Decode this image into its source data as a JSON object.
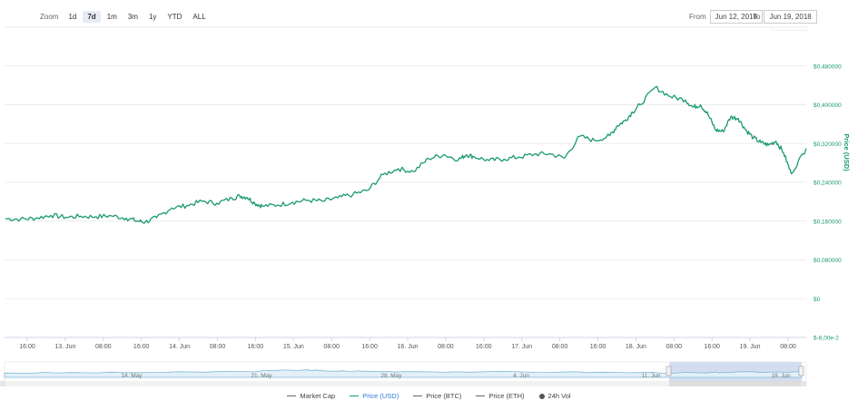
{
  "zoom": {
    "label": "Zoom",
    "buttons": [
      "1d",
      "7d",
      "1m",
      "3m",
      "1y",
      "YTD",
      "ALL"
    ],
    "active": "7d"
  },
  "range": {
    "from_label": "From",
    "from_value": "Jun 12, 2018",
    "to_label": "To",
    "to_value": "Jun 19, 2018"
  },
  "chart_data": {
    "type": "line",
    "ylabel": "Price (USD)",
    "y_ticks": [
      "$0,480000",
      "$0,400000",
      "$0,320000",
      "$0,240000",
      "$0,160000",
      "$0,080000",
      "$0",
      "$-8,00e-2"
    ],
    "y_tick_values": [
      0.48,
      0.4,
      0.32,
      0.24,
      0.16,
      0.08,
      0,
      -0.08
    ],
    "ylim": [
      -0.08,
      0.56
    ],
    "x_ticks": [
      "16:00",
      "13. Jun",
      "08:00",
      "16:00",
      "14. Jun",
      "08:00",
      "16:00",
      "15. Jun",
      "08:00",
      "16:00",
      "16. Jun",
      "08:00",
      "16:00",
      "17. Jun",
      "08:00",
      "16:00",
      "18. Jun",
      "08:00",
      "16:00",
      "19. Jun",
      "08:00"
    ],
    "grid": true,
    "series": [
      {
        "name": "Price (USD)",
        "color": "#1a9a6c",
        "x": [
          0,
          2,
          4,
          6,
          8,
          10,
          12,
          14,
          16,
          17.5,
          18.5,
          20,
          22,
          24,
          26,
          28,
          30,
          31,
          32,
          33,
          34,
          36,
          38,
          40,
          42,
          44,
          46,
          48,
          50,
          52,
          54,
          56,
          58,
          60,
          61,
          62,
          64,
          66,
          68,
          70,
          72,
          74,
          76,
          78,
          80,
          81,
          82,
          83,
          84,
          86,
          88,
          90,
          91,
          92,
          93,
          94,
          95,
          96,
          97,
          98,
          99,
          100,
          101,
          102,
          103,
          104,
          106
        ],
        "values": [
          0.165,
          0.164,
          0.166,
          0.172,
          0.168,
          0.17,
          0.169,
          0.171,
          0.166,
          0.16,
          0.158,
          0.167,
          0.187,
          0.192,
          0.201,
          0.197,
          0.207,
          0.212,
          0.209,
          0.197,
          0.191,
          0.193,
          0.199,
          0.203,
          0.201,
          0.208,
          0.215,
          0.224,
          0.256,
          0.268,
          0.262,
          0.289,
          0.297,
          0.287,
          0.297,
          0.293,
          0.285,
          0.288,
          0.292,
          0.298,
          0.299,
          0.29,
          0.335,
          0.326,
          0.336,
          0.357,
          0.367,
          0.385,
          0.4,
          0.436,
          0.417,
          0.41,
          0.395,
          0.4,
          0.38,
          0.348,
          0.345,
          0.375,
          0.372,
          0.348,
          0.332,
          0.322,
          0.317,
          0.325,
          0.301,
          0.258,
          0.31
        ]
      }
    ],
    "navigator": {
      "ticks": [
        "14. May",
        "21. May",
        "28. May",
        "4. Jun",
        "11. Jun",
        "18. Jun"
      ],
      "x": [
        0,
        10,
        20,
        30,
        38,
        40,
        45,
        50,
        60,
        70,
        80,
        88,
        90,
        96,
        100
      ],
      "values": [
        0.3,
        0.32,
        0.34,
        0.4,
        0.52,
        0.45,
        0.42,
        0.4,
        0.38,
        0.36,
        0.33,
        0.3,
        0.34,
        0.36,
        0.4
      ]
    },
    "legend": [
      "Market Cap",
      "Price (USD)",
      "Price (BTC)",
      "Price (ETH)",
      "24h Vol"
    ],
    "legend_active": "Price (USD)"
  }
}
